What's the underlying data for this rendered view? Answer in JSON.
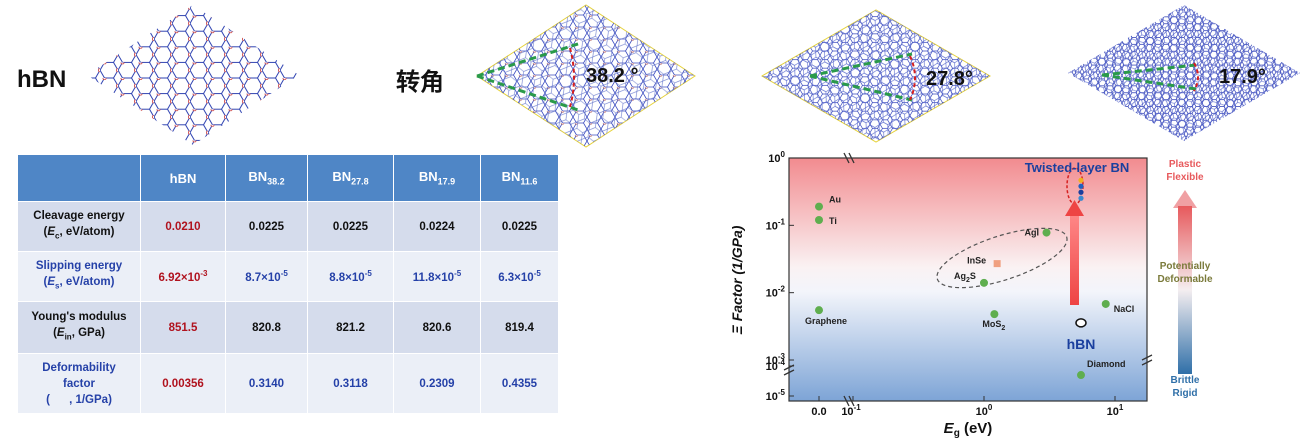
{
  "labels": {
    "hbn": "hBN",
    "twist": "转角"
  },
  "angles": [
    "38.2 °",
    "27.8°",
    "17.9°"
  ],
  "table": {
    "headers": [
      "",
      "hBN",
      "BN38.2",
      "BN27.8",
      "BN17.9",
      "BN11.6"
    ],
    "rows": [
      {
        "label1": "Cleavage energy",
        "label2": "(Ec, eV/atom)",
        "values": [
          "0.0210",
          "0.0225",
          "0.0225",
          "0.0224",
          "0.0225"
        ]
      },
      {
        "label1": "Slipping energy",
        "label2": "(Es, eV/atom)",
        "values": [
          "6.92×10-3",
          "8.7×10-5",
          "8.8×10-5",
          "11.8×10-5",
          "6.3×10-5"
        ]
      },
      {
        "label1": "Young's modulus",
        "label2": "(Ein, GPa)",
        "values": [
          "851.5",
          "820.8",
          "821.2",
          "820.6",
          "819.4"
        ]
      },
      {
        "label1": "Deformability",
        "label2": "factor",
        "label3": "(      , 1/GPa)",
        "values": [
          "0.00356",
          "0.3140",
          "0.3118",
          "0.2309",
          "0.4355"
        ]
      }
    ]
  },
  "chart_data": {
    "type": "scatter",
    "title": "Twisted-layer BN",
    "xlabel": "Eg (eV)",
    "ylabel": "Ξ Factor (1/GPa)",
    "xscale": "log (broken axis with 0.0 segment)",
    "yscale": "log (broken axis)",
    "xticks": [
      "0.0",
      "10-1",
      "100",
      "101"
    ],
    "yticks": [
      "100",
      "10-1",
      "10-2",
      "10-3",
      "10-4",
      "10-5"
    ],
    "points": [
      {
        "name": "Au",
        "x": 0.0,
        "y": 0.19
      },
      {
        "name": "Ti",
        "x": 0.0,
        "y": 0.12
      },
      {
        "name": "Graphene",
        "x": 0.0,
        "y": 0.0055
      },
      {
        "name": "InSe",
        "x": 1.26,
        "y": 0.027
      },
      {
        "name": "Ag2S",
        "x": 1.0,
        "y": 0.014
      },
      {
        "name": "AgI",
        "x": 3.0,
        "y": 0.078
      },
      {
        "name": "MoS2",
        "x": 1.2,
        "y": 0.0048
      },
      {
        "name": "NaCl",
        "x": 8.5,
        "y": 0.0068
      },
      {
        "name": "Diamond",
        "x": 5.5,
        "y": 5e-05
      },
      {
        "name": "hBN",
        "x": 5.5,
        "y": 0.00356
      },
      {
        "name": "Twisted-layer BN",
        "x": 5.5,
        "y": 0.31
      }
    ],
    "point_labels": [
      "Au",
      "Ti",
      "Graphene",
      "InSe",
      "Ag2S",
      "AgI",
      "MoS2",
      "NaCl",
      "Diamond",
      "hBN"
    ],
    "side_labels": [
      "Plastic",
      "Flexible",
      "Potentially",
      "Deformable",
      "Brittle",
      "Rigid"
    ],
    "colors": {
      "point": "#5fae4f",
      "hbn": "#1a3f9e",
      "twisted_title": "#1a3f9e",
      "plastic": "#e7595c",
      "brittle": "#2f6fa8",
      "deformable": "#7a7a3a"
    }
  }
}
